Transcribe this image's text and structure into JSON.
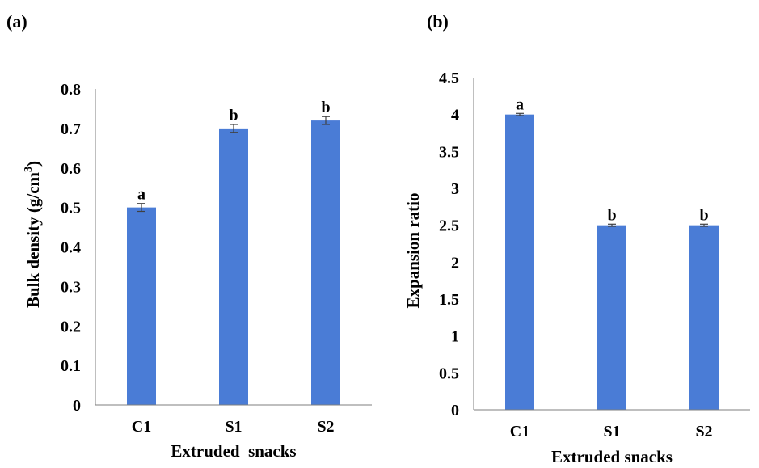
{
  "chart_data": [
    {
      "type": "bar",
      "panel_label": "(a)",
      "categories": [
        "C1",
        "S1",
        "S2"
      ],
      "values": [
        0.5,
        0.7,
        0.72
      ],
      "errors": [
        0.01,
        0.01,
        0.01
      ],
      "significance": [
        "a",
        "b",
        "b"
      ],
      "ylim": [
        0,
        0.8
      ],
      "yticks": [
        "0",
        "0.1",
        "0.2",
        "0.3",
        "0.4",
        "0.5",
        "0.6",
        "0.7",
        "0.8"
      ],
      "xlabel": "Extruded  snacks",
      "ylabel_main": "Bulk density (g/cm",
      "ylabel_sup": "3",
      "ylabel_end": ")",
      "bar_color": "#4a7cd6",
      "grid": false
    },
    {
      "type": "bar",
      "panel_label": "(b)",
      "categories": [
        "C1",
        "S1",
        "S2"
      ],
      "values": [
        4.0,
        2.5,
        2.5
      ],
      "errors": [
        0.015,
        0.015,
        0.015
      ],
      "significance": [
        "a",
        "b",
        "b"
      ],
      "ylim": [
        0,
        4.5
      ],
      "yticks": [
        "0",
        "0.5",
        "1",
        "1.5",
        "2",
        "2.5",
        "3",
        "3.5",
        "4",
        "4.5"
      ],
      "xlabel": "Extruded snacks",
      "ylabel": "Expansion ratio",
      "bar_color": "#4a7cd6",
      "grid": false
    }
  ]
}
